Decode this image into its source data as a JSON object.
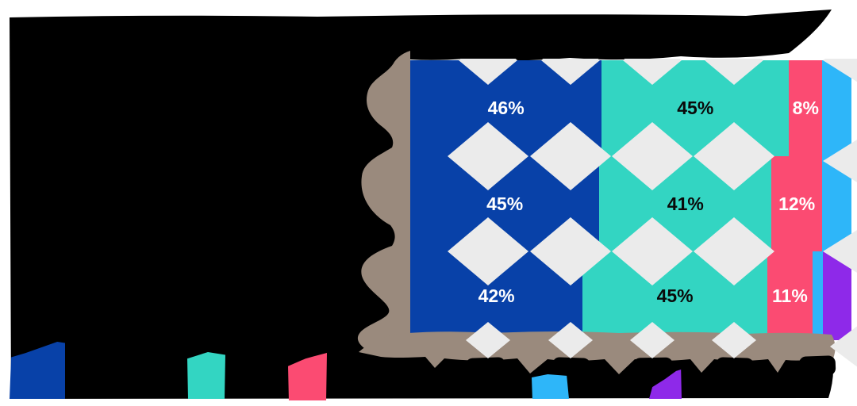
{
  "title": {
    "text": "",
    "obscured": true,
    "note": "title area is a solid black ink blob - text illegible"
  },
  "colors": {
    "blue": "#0841a8",
    "teal": "#33d5c2",
    "pink": "#fb4b72",
    "cyan": "#2eb6f9",
    "purple": "#8e29e9",
    "axis_brush": "#9a8a7d",
    "diamond_pattern": "#ebebeb",
    "ink": "#000000",
    "background": "#ffffff"
  },
  "chart_data": {
    "type": "bar",
    "orientation": "horizontal",
    "stacked": true,
    "value_unit": "%",
    "categories": [
      "",
      "",
      ""
    ],
    "category_labels_obscured": true,
    "axis_tick_labels_obscured": true,
    "series": [
      {
        "name": "",
        "color_key": "blue",
        "color": "#0841a8",
        "values": [
          46,
          45,
          42
        ],
        "labels_shown": true,
        "estimated": false
      },
      {
        "name": "",
        "color_key": "teal",
        "color": "#33d5c2",
        "values": [
          45,
          41,
          45
        ],
        "labels_shown": true,
        "estimated": false
      },
      {
        "name": "",
        "color_key": "pink",
        "color": "#fb4b72",
        "values": [
          8,
          12,
          11
        ],
        "labels_shown": true,
        "estimated": false
      },
      {
        "name": "",
        "color_key": "cyan",
        "color": "#2eb6f9",
        "values": [
          7,
          7,
          2.5
        ],
        "labels_shown": false,
        "estimated": true
      },
      {
        "name": "",
        "color_key": "purple",
        "color": "#8e29e9",
        "values": [
          0,
          0,
          7
        ],
        "labels_shown": false,
        "estimated": true
      }
    ],
    "segment_labels": [
      [
        "46%",
        "45%",
        "8%",
        "",
        ""
      ],
      [
        "45%",
        "41%",
        "12%",
        "",
        ""
      ],
      [
        "42%",
        "45%",
        "11%",
        "",
        ""
      ]
    ],
    "label_text_color_on": {
      "blue": "#ffffff",
      "teal": "#0a0a0a",
      "pink": "#ffffff",
      "cyan": "",
      "purple": ""
    }
  },
  "legend": {
    "labels_obscured": true,
    "items": [
      {
        "label": "",
        "color": "#0841a8"
      },
      {
        "label": "",
        "color": "#33d5c2"
      },
      {
        "label": "",
        "color": "#fb4b72"
      },
      {
        "label": "",
        "color": "#2eb6f9"
      },
      {
        "label": "",
        "color": "#8e29e9"
      }
    ]
  }
}
